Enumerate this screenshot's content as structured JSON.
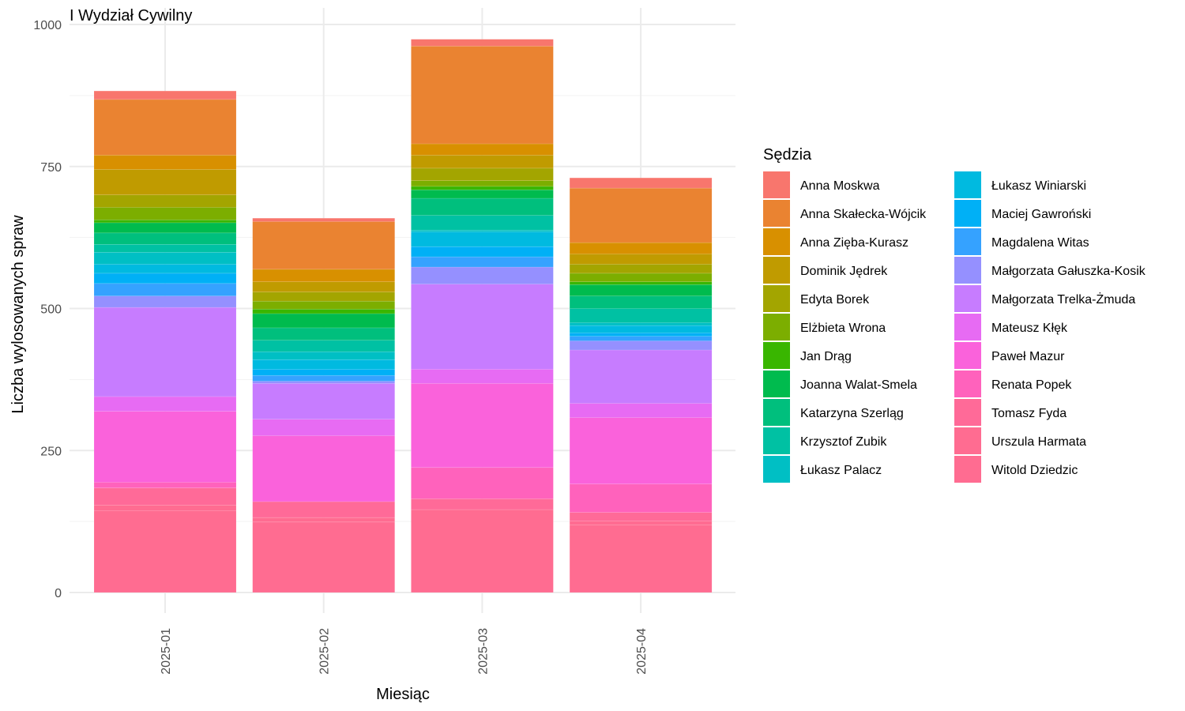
{
  "chart_data": {
    "type": "bar",
    "stacked": true,
    "title": "I Wydział Cywilny",
    "xlabel": "Miesiąc",
    "ylabel": "Liczba wylosowanych spraw",
    "ylim": [
      -38,
      1025
    ],
    "yticks": [
      0,
      250,
      500,
      750,
      1000
    ],
    "grid": true,
    "legend_title": "Sędzia",
    "legend_position": "right",
    "categories": [
      "2025-01",
      "2025-02",
      "2025-03",
      "2025-04"
    ],
    "series": [
      {
        "name": "Anna Moskwa",
        "color": "#F8766D",
        "values": [
          15,
          6,
          12,
          18
        ]
      },
      {
        "name": "Anna Skałecka-Wójcik",
        "color": "#EA8331",
        "values": [
          98,
          84,
          172,
          96
        ]
      },
      {
        "name": "Anna Zięba-Kurasz",
        "color": "#D89000",
        "values": [
          25,
          22,
          20,
          20
        ]
      },
      {
        "name": "Dominik Jędrek",
        "color": "#C09B00",
        "values": [
          45,
          18,
          23,
          18
        ]
      },
      {
        "name": "Edyta Borek",
        "color": "#A3A500",
        "values": [
          22,
          16,
          22,
          16
        ]
      },
      {
        "name": "Elżbieta Wrona",
        "color": "#7CAE00",
        "values": [
          22,
          14,
          10,
          15
        ]
      },
      {
        "name": "Jan Drąg",
        "color": "#39B600",
        "values": [
          5,
          8,
          6,
          5
        ]
      },
      {
        "name": "Joanna Walat-Smela",
        "color": "#00BB4E",
        "values": [
          18,
          25,
          15,
          20
        ]
      },
      {
        "name": "Katarzyna Szerląg",
        "color": "#00BF7D",
        "values": [
          20,
          22,
          30,
          22
        ]
      },
      {
        "name": "Krzysztof Zubik",
        "color": "#00C1A3",
        "values": [
          14,
          20,
          26,
          25
        ]
      },
      {
        "name": "Łukasz Palacz",
        "color": "#00BFC4",
        "values": [
          21,
          14,
          3,
          5
        ]
      },
      {
        "name": "Łukasz Winiarski",
        "color": "#00BAE0",
        "values": [
          16,
          17,
          26,
          13
        ]
      },
      {
        "name": "Maciej Gawroński",
        "color": "#00B0F6",
        "values": [
          18,
          11,
          18,
          6
        ]
      },
      {
        "name": "Magdalena Witas",
        "color": "#35A2FF",
        "values": [
          22,
          10,
          18,
          8
        ]
      },
      {
        "name": "Małgorzata Gałuszka-Kosik",
        "color": "#9590FF",
        "values": [
          20,
          4,
          30,
          16
        ]
      },
      {
        "name": "Małgorzata Trelka-Żmuda",
        "color": "#C77CFF",
        "values": [
          157,
          63,
          150,
          94
        ]
      },
      {
        "name": "Mateusz Kłęk",
        "color": "#E76BF3",
        "values": [
          26,
          29,
          25,
          25
        ]
      },
      {
        "name": "Paweł Mazur",
        "color": "#FA62DB",
        "values": [
          125,
          116,
          148,
          117
        ]
      },
      {
        "name": "Renata Popek",
        "color": "#FF62BC",
        "values": [
          10,
          0,
          55,
          50
        ]
      },
      {
        "name": "Tomasz Fyda",
        "color": "#FF6A98",
        "values": [
          30,
          28,
          19,
          15
        ]
      },
      {
        "name": "Urszula Harmata",
        "color": "#FF6C91",
        "values": [
          10,
          8,
          0,
          7
        ]
      },
      {
        "name": "Witold Dziedzic",
        "color": "#FF6C91",
        "values": [
          144,
          124,
          146,
          119
        ]
      }
    ]
  }
}
